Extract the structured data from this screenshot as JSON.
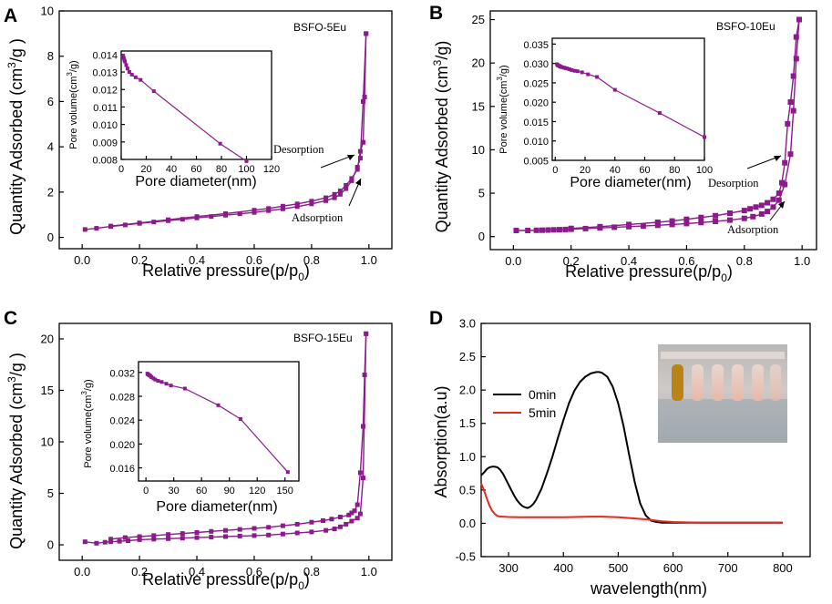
{
  "colors": {
    "bet": "#8B1A8B",
    "line_0min": "#000000",
    "line_5min": "#e6281e"
  },
  "chart_data": [
    {
      "panel": "A",
      "type": "line",
      "sample_label": "BSFO-5Eu",
      "xlabel": "Relative pressure(p/p0)",
      "xlabel_main": "Relative pressure(p/p",
      "xlabel_sub": "0",
      "xlabel_close": ")",
      "ylabel": "Quantity Adsorbed (cm3/g)",
      "ylabel_main": "Quantity Adsorbed (cm",
      "ylabel_sup": "3",
      "ylabel_tail": "/g )",
      "xlim": [
        -0.08,
        1.08
      ],
      "ylim": [
        -0.5,
        10
      ],
      "xticks": [
        "0.0",
        "0.2",
        "0.4",
        "0.6",
        "0.8",
        "1.0"
      ],
      "yticks": [
        "0",
        "2",
        "4",
        "6",
        "8",
        "10"
      ],
      "annotations": {
        "desorption": "Desorption",
        "adsorption": "Adsorption"
      },
      "series": [
        {
          "name": "Adsorption",
          "x": [
            0.01,
            0.05,
            0.1,
            0.15,
            0.2,
            0.25,
            0.3,
            0.35,
            0.4,
            0.45,
            0.5,
            0.55,
            0.6,
            0.65,
            0.7,
            0.75,
            0.8,
            0.85,
            0.88,
            0.9,
            0.92,
            0.94,
            0.96,
            0.97,
            0.98,
            0.99
          ],
          "y": [
            0.35,
            0.4,
            0.48,
            0.55,
            0.62,
            0.68,
            0.74,
            0.8,
            0.86,
            0.92,
            0.98,
            1.04,
            1.1,
            1.18,
            1.26,
            1.36,
            1.48,
            1.62,
            1.75,
            1.9,
            2.15,
            2.5,
            3.1,
            3.5,
            6.0,
            9.0
          ]
        },
        {
          "name": "Desorption",
          "x": [
            0.99,
            0.985,
            0.98,
            0.97,
            0.96,
            0.94,
            0.92,
            0.9,
            0.88,
            0.85,
            0.8,
            0.75,
            0.7,
            0.65,
            0.6,
            0.5,
            0.4,
            0.3,
            0.2,
            0.1
          ],
          "y": [
            9.0,
            6.2,
            4.2,
            3.8,
            3.0,
            2.6,
            2.3,
            2.05,
            1.9,
            1.75,
            1.6,
            1.48,
            1.38,
            1.28,
            1.2,
            1.05,
            0.92,
            0.78,
            0.64,
            0.5
          ]
        }
      ],
      "inset": {
        "xlabel": "Pore diameter(nm)",
        "ylabel": "Pore volume(cm3/g)",
        "ylabel_main": "Pore volume(cm",
        "ylabel_sup": "3",
        "ylabel_tail": "/g)",
        "xlim": [
          0,
          120
        ],
        "ylim": [
          0.008,
          0.0142
        ],
        "xticks": [
          "0",
          "20",
          "40",
          "60",
          "80",
          "100",
          "120"
        ],
        "yticks": [
          "0.008",
          "0.009",
          "0.010",
          "0.011",
          "0.012",
          "0.013",
          "0.014"
        ],
        "x": [
          1.5,
          2.0,
          2.5,
          3.0,
          4.0,
          5.0,
          6.5,
          8.5,
          11.5,
          15.5,
          26.0,
          79.0,
          100.0
        ],
        "y": [
          0.0139,
          0.0138,
          0.0137,
          0.0136,
          0.0134,
          0.0132,
          0.013,
          0.01285,
          0.0127,
          0.01255,
          0.0119,
          0.0089,
          0.0079
        ]
      }
    },
    {
      "panel": "B",
      "type": "line",
      "sample_label": "BSFO-10Eu",
      "xlabel": "Relative pressure(p/p0)",
      "xlabel_main": "Relative pressure(p/p",
      "xlabel_sub": "0",
      "xlabel_close": ")",
      "ylabel": "Quantity Adsorbed (cm3/g)",
      "ylabel_main": "Quantity Adsorbed (cm",
      "ylabel_sup": "3",
      "ylabel_tail": "/g)",
      "xlim": [
        -0.08,
        1.05
      ],
      "ylim": [
        -1.5,
        26
      ],
      "xticks": [
        "0.0",
        "0.2",
        "0.4",
        "0.6",
        "0.8",
        "1.0"
      ],
      "yticks": [
        "0",
        "5",
        "10",
        "15",
        "20",
        "25"
      ],
      "annotations": {
        "desorption": "Desorption",
        "adsorption": "Adsorption"
      },
      "series": [
        {
          "name": "Adsorption",
          "x": [
            0.01,
            0.05,
            0.08,
            0.1,
            0.12,
            0.14,
            0.16,
            0.18,
            0.2,
            0.25,
            0.3,
            0.35,
            0.4,
            0.45,
            0.5,
            0.55,
            0.6,
            0.65,
            0.7,
            0.75,
            0.8,
            0.83,
            0.86,
            0.88,
            0.9,
            0.92,
            0.94,
            0.96,
            0.97,
            0.98,
            0.99
          ],
          "y": [
            0.7,
            0.7,
            0.72,
            0.74,
            0.76,
            0.78,
            0.8,
            0.82,
            0.85,
            0.92,
            1.0,
            1.08,
            1.15,
            1.22,
            1.3,
            1.4,
            1.5,
            1.62,
            1.75,
            1.9,
            2.1,
            2.3,
            2.6,
            2.9,
            3.4,
            4.2,
            6.0,
            9.5,
            14.5,
            20.5,
            25.0
          ]
        },
        {
          "name": "Desorption",
          "x": [
            0.99,
            0.98,
            0.97,
            0.96,
            0.95,
            0.94,
            0.93,
            0.92,
            0.9,
            0.88,
            0.86,
            0.84,
            0.82,
            0.8,
            0.75,
            0.7,
            0.65,
            0.6,
            0.55,
            0.5,
            0.4,
            0.3,
            0.2
          ],
          "y": [
            25.0,
            23.0,
            18.5,
            15.5,
            13.0,
            8.5,
            6.2,
            5.0,
            4.3,
            3.9,
            3.6,
            3.4,
            3.2,
            3.0,
            2.7,
            2.4,
            2.2,
            2.0,
            1.8,
            1.65,
            1.4,
            1.15,
            0.95
          ]
        }
      ],
      "inset": {
        "xlabel": "Pore diameter(nm)",
        "ylabel": "Pore volume(cm3/g)",
        "ylabel_main": "Pore volume(cm",
        "ylabel_sup": "3",
        "ylabel_tail": "/g)",
        "xlim": [
          -2,
          100
        ],
        "ylim": [
          0.005,
          0.0365
        ],
        "xticks": [
          "0",
          "20",
          "40",
          "60",
          "80",
          "100"
        ],
        "yticks": [
          "0.005",
          "0.010",
          "0.015",
          "0.020",
          "0.025",
          "0.030",
          "0.035"
        ],
        "x": [
          1.2,
          1.6,
          2.0,
          2.5,
          3.0,
          3.5,
          4.0,
          5.0,
          6.0,
          7.0,
          8.0,
          9.5,
          11.0,
          13.0,
          15.0,
          18.0,
          22.0,
          28.0,
          40.0,
          70.0,
          100.0
        ],
        "y": [
          0.0298,
          0.0296,
          0.0295,
          0.0294,
          0.0293,
          0.0292,
          0.0291,
          0.029,
          0.0289,
          0.0288,
          0.0287,
          0.0285,
          0.0283,
          0.0281,
          0.028,
          0.0277,
          0.0272,
          0.0265,
          0.0232,
          0.0172,
          0.011
        ]
      }
    },
    {
      "panel": "C",
      "type": "line",
      "sample_label": "BSFO-15Eu",
      "xlabel": "Relative pressure(p/p0)",
      "xlabel_main": "Relative pressure(p/p",
      "xlabel_sub": "0",
      "xlabel_close": ")",
      "ylabel": "Quantity Adsorbed (cm3/g)",
      "ylabel_main": "Quantity Adsorbed (cm",
      "ylabel_sup": "3",
      "ylabel_tail": "/g )",
      "xlim": [
        -0.08,
        1.08
      ],
      "ylim": [
        -1.5,
        21.5
      ],
      "xticks": [
        "0.0",
        "0.2",
        "0.4",
        "0.6",
        "0.8",
        "1.0"
      ],
      "yticks": [
        "0",
        "5",
        "10",
        "15",
        "20"
      ],
      "series": [
        {
          "name": "Adsorption",
          "x": [
            0.01,
            0.05,
            0.08,
            0.1,
            0.13,
            0.16,
            0.2,
            0.25,
            0.3,
            0.35,
            0.4,
            0.45,
            0.5,
            0.55,
            0.6,
            0.65,
            0.7,
            0.75,
            0.8,
            0.85,
            0.88,
            0.9,
            0.92,
            0.94,
            0.96,
            0.97,
            0.98,
            0.99
          ],
          "y": [
            0.3,
            0.15,
            0.25,
            0.3,
            0.35,
            0.4,
            0.5,
            0.55,
            0.6,
            0.65,
            0.7,
            0.75,
            0.8,
            0.85,
            0.9,
            0.95,
            1.05,
            1.15,
            1.25,
            1.4,
            1.55,
            1.75,
            2.0,
            2.3,
            2.6,
            3.0,
            6.5,
            20.5
          ]
        },
        {
          "name": "Desorption",
          "x": [
            0.99,
            0.985,
            0.98,
            0.97,
            0.96,
            0.95,
            0.94,
            0.93,
            0.9,
            0.87,
            0.84,
            0.8,
            0.75,
            0.7,
            0.65,
            0.6,
            0.55,
            0.5,
            0.45,
            0.4,
            0.35,
            0.3,
            0.25,
            0.2,
            0.15,
            0.1
          ],
          "y": [
            20.5,
            16.5,
            11.5,
            7.0,
            3.9,
            3.3,
            3.1,
            2.9,
            2.7,
            2.5,
            2.35,
            2.2,
            2.0,
            1.85,
            1.7,
            1.6,
            1.5,
            1.4,
            1.3,
            1.2,
            1.1,
            1.0,
            0.9,
            0.8,
            0.7,
            0.55
          ]
        }
      ],
      "inset": {
        "xlabel": "Pore diameter(nm)",
        "ylabel": "Pore volume(cm3/g)",
        "ylabel_main": "Pore volume(cm",
        "ylabel_sup": "3",
        "ylabel_tail": "/g)",
        "xlim": [
          -8,
          165
        ],
        "ylim": [
          0.0138,
          0.0338
        ],
        "xticks": [
          "0",
          "30",
          "60",
          "90",
          "120",
          "150"
        ],
        "yticks": [
          "0.016",
          "0.020",
          "0.024",
          "0.028",
          "0.032"
        ],
        "x": [
          1.5,
          2.0,
          3.0,
          4.0,
          5.0,
          6.0,
          8.0,
          10.0,
          13.0,
          17.0,
          22.0,
          27.0,
          42.0,
          78.0,
          102.0,
          153.0
        ],
        "y": [
          0.0318,
          0.0317,
          0.0316,
          0.0315,
          0.0314,
          0.0312,
          0.031,
          0.0308,
          0.0306,
          0.0304,
          0.0301,
          0.0298,
          0.0293,
          0.0265,
          0.0242,
          0.0153
        ]
      }
    },
    {
      "panel": "D",
      "type": "line",
      "xlabel": "wavelength(nm)",
      "ylabel": "Absorption(a.u)",
      "xlim": [
        250,
        850
      ],
      "ylim": [
        -0.5,
        3.0
      ],
      "xticks": [
        "300",
        "400",
        "500",
        "600",
        "700",
        "800"
      ],
      "yticks": [
        "-0.5",
        "0.0",
        "0.5",
        "1.0",
        "1.5",
        "2.0",
        "2.5",
        "3.0"
      ],
      "legend_position": "middle-left",
      "series": [
        {
          "name": "0min",
          "x": [
            250,
            255,
            260,
            265,
            270,
            275,
            280,
            285,
            290,
            295,
            300,
            305,
            310,
            315,
            320,
            325,
            330,
            335,
            340,
            345,
            350,
            360,
            370,
            380,
            390,
            400,
            410,
            420,
            430,
            440,
            450,
            460,
            465,
            470,
            480,
            490,
            500,
            510,
            520,
            530,
            540,
            550,
            560,
            570,
            580,
            600,
            650,
            700,
            750,
            800
          ],
          "y": [
            0.72,
            0.76,
            0.81,
            0.84,
            0.85,
            0.85,
            0.84,
            0.8,
            0.74,
            0.66,
            0.58,
            0.5,
            0.42,
            0.35,
            0.3,
            0.26,
            0.24,
            0.23,
            0.25,
            0.29,
            0.35,
            0.52,
            0.75,
            1.0,
            1.28,
            1.55,
            1.8,
            1.99,
            2.12,
            2.2,
            2.25,
            2.27,
            2.27,
            2.26,
            2.2,
            2.05,
            1.8,
            1.45,
            1.02,
            0.62,
            0.3,
            0.12,
            0.04,
            0.02,
            0.01,
            0.01,
            0.01,
            0.01,
            0.01,
            0.01
          ]
        },
        {
          "name": "5min",
          "x": [
            250,
            255,
            260,
            265,
            270,
            275,
            280,
            285,
            290,
            300,
            320,
            350,
            400,
            450,
            470,
            500,
            550,
            580,
            600,
            650,
            700,
            750,
            800
          ],
          "y": [
            0.6,
            0.5,
            0.38,
            0.27,
            0.19,
            0.14,
            0.11,
            0.1,
            0.1,
            0.095,
            0.09,
            0.09,
            0.09,
            0.1,
            0.1,
            0.09,
            0.06,
            0.03,
            0.02,
            0.01,
            0.01,
            0.01,
            0.01
          ]
        }
      ]
    }
  ]
}
